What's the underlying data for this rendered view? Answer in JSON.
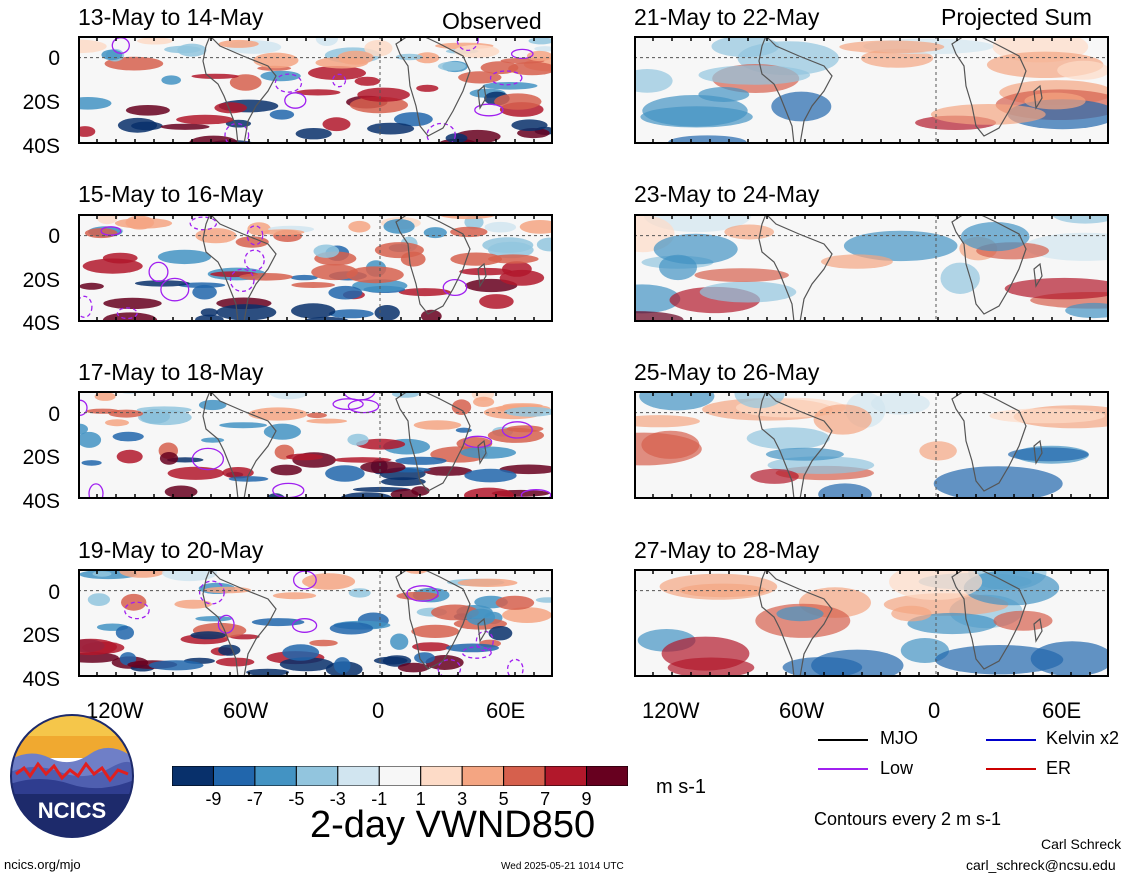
{
  "header": {
    "left_title": "Observed",
    "right_title": "Projected Sum"
  },
  "panels": {
    "left": [
      {
        "title": "13-May to 14-May"
      },
      {
        "title": "15-May to 16-May"
      },
      {
        "title": "17-May to 18-May"
      },
      {
        "title": "19-May to 20-May"
      }
    ],
    "right": [
      {
        "title": "21-May to 22-May"
      },
      {
        "title": "23-May to 24-May"
      },
      {
        "title": "25-May to 26-May"
      },
      {
        "title": "27-May to 28-May"
      }
    ]
  },
  "axes": {
    "y_ticks": [
      "0",
      "20S",
      "40S"
    ],
    "x_ticks": [
      "120W",
      "60W",
      "0",
      "60E"
    ]
  },
  "colorbar": {
    "labels": [
      "-9",
      "-7",
      "-5",
      "-3",
      "-1",
      "1",
      "3",
      "5",
      "7",
      "9"
    ],
    "units": "m s-1",
    "colors": [
      "#08306b",
      "#2166ac",
      "#4393c3",
      "#92c5de",
      "#d1e5f0",
      "#f7f7f7",
      "#fddbc7",
      "#f4a582",
      "#d6604d",
      "#b2182b",
      "#67001f"
    ]
  },
  "main_title": "2-day VWND850",
  "legend": {
    "items": [
      {
        "label": "MJO",
        "color": "#000000"
      },
      {
        "label": "Kelvin x2",
        "color": "#0000cc"
      },
      {
        "label": "Low",
        "color": "#a020f0"
      },
      {
        "label": "ER",
        "color": "#cc0000"
      }
    ],
    "contours_note": "Contours every 2 m s-1"
  },
  "footer": {
    "site": "ncics.org/mjo",
    "timestamp": "Wed 2025-05-21 1014 UTC",
    "author": "Carl Schreck",
    "email": "carl_schreck@ncsu.edu"
  },
  "logo": {
    "text": "NCICS"
  },
  "chart_data": [
    {
      "type": "heatmap",
      "title": "13-May to 14-May",
      "field": "2-day VWND850",
      "ylim": [
        "40S",
        "10N"
      ]
    },
    {
      "type": "heatmap",
      "title": "15-May to 16-May",
      "field": "2-day VWND850",
      "ylim": [
        "40S",
        "10N"
      ]
    },
    {
      "type": "heatmap",
      "title": "17-May to 18-May",
      "field": "2-day VWND850",
      "ylim": [
        "40S",
        "10N"
      ]
    },
    {
      "type": "heatmap",
      "title": "19-May to 20-May",
      "field": "2-day VWND850",
      "ylim": [
        "40S",
        "10N"
      ]
    },
    {
      "type": "heatmap",
      "title": "21-May to 22-May",
      "field": "2-day VWND850",
      "ylim": [
        "40S",
        "10N"
      ]
    },
    {
      "type": "heatmap",
      "title": "23-May to 24-May",
      "field": "2-day VWND850",
      "ylim": [
        "40S",
        "10N"
      ]
    },
    {
      "type": "heatmap",
      "title": "25-May to 26-May",
      "field": "2-day VWND850",
      "ylim": [
        "40S",
        "10N"
      ]
    },
    {
      "type": "heatmap",
      "title": "27-May to 28-May",
      "field": "2-day VWND850",
      "ylim": [
        "40S",
        "10N"
      ]
    }
  ]
}
